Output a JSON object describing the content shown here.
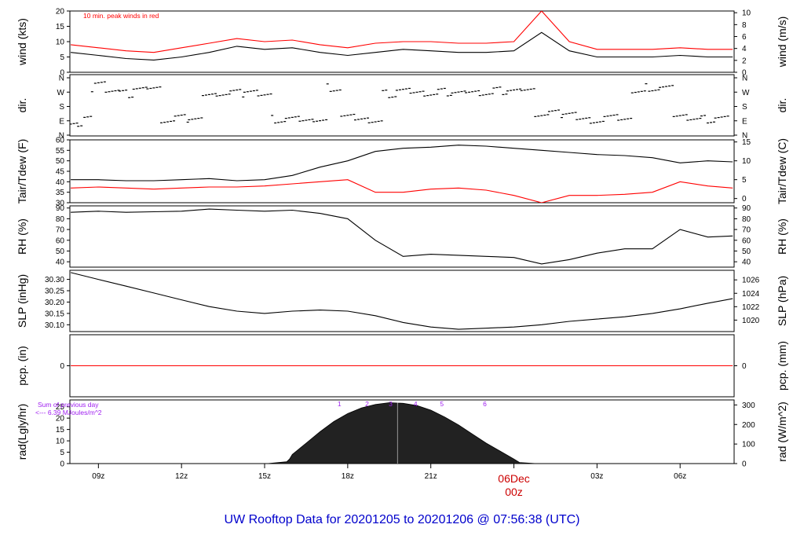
{
  "title": "UW Rooftop Data for 20201205  to  20201206 @ 07:56:38  (UTC)",
  "colors": {
    "title": "#0000cc",
    "accent_red": "#ff0000",
    "purple": "#a020f0",
    "line": "#000000"
  },
  "time_axis": {
    "ticks": [
      "09z",
      "12z",
      "15z",
      "18z",
      "21z",
      "00z",
      "03z",
      "06z"
    ],
    "tick_hours": [
      9,
      12,
      15,
      18,
      21,
      24,
      27,
      30
    ],
    "date_label": "06Dec",
    "date_tick": "00z",
    "range_hours": [
      7.97,
      31.95
    ]
  },
  "chart_data": [
    {
      "type": "line",
      "id": "wind",
      "ylabel_left": "wind (kts)",
      "ylabel_right": "wind (m/s)",
      "annotation": "10 min. peak winds in red",
      "ylim": [
        0,
        20
      ],
      "yticks_left": [
        "0",
        "5",
        "10",
        "15",
        "20"
      ],
      "yticks_right": [
        "0",
        "2",
        "4",
        "6",
        "8",
        "10"
      ],
      "series": [
        {
          "role": "wind speed",
          "color": "#000000",
          "x_hours": [
            8,
            9,
            10,
            11,
            12,
            13,
            14,
            15,
            16,
            17,
            18,
            19,
            20,
            21,
            22,
            23,
            24,
            25,
            26,
            27,
            28,
            29,
            30,
            31,
            31.9
          ],
          "values": [
            6.5,
            5.5,
            4.5,
            4,
            5,
            6.5,
            8.5,
            7.5,
            8,
            6.5,
            5.5,
            6.5,
            7.5,
            7,
            6.5,
            6.5,
            7,
            13,
            7,
            5,
            5,
            5,
            5.5,
            5,
            5
          ]
        },
        {
          "role": "10 min peak",
          "color": "#ff0000",
          "x_hours": [
            8,
            9,
            10,
            11,
            12,
            13,
            14,
            15,
            16,
            17,
            18,
            19,
            20,
            21,
            22,
            23,
            24,
            25,
            26,
            27,
            28,
            29,
            30,
            31,
            31.9
          ],
          "values": [
            9,
            8,
            7,
            6.5,
            8,
            9.5,
            11,
            10,
            10.5,
            9,
            8,
            9.5,
            10,
            10,
            9.5,
            9.5,
            10,
            20,
            10,
            7.5,
            7.5,
            7.5,
            8,
            7.5,
            7.5
          ]
        }
      ]
    },
    {
      "type": "scatter",
      "id": "dir",
      "ylabel_left": "dir.",
      "ylabel_right": "dir.",
      "yticks_left": [
        "N",
        "E",
        "S",
        "W",
        "N"
      ],
      "yticks_right": [
        "N",
        "E",
        "S",
        "W",
        "N"
      ],
      "series": [
        {
          "role": "wind direction (deg)",
          "color": "#000000",
          "x_hours": [
            8,
            8.5,
            9,
            9.5,
            10,
            10.5,
            11,
            11.5,
            12,
            12.5,
            13,
            13.5,
            14,
            14.5,
            15,
            15.5,
            16,
            16.5,
            17,
            17.5,
            18,
            18.5,
            19,
            19.5,
            20,
            20.5,
            21,
            21.5,
            22,
            22.5,
            23,
            23.5,
            24,
            24.5,
            25,
            25.5,
            26,
            26.5,
            27,
            27.5,
            28,
            28.5,
            29,
            29.5,
            30,
            30.5,
            31,
            31.5
          ],
          "values": [
            95,
            100,
            330,
            290,
            260,
            285,
            300,
            100,
            105,
            95,
            260,
            270,
            265,
            270,
            260,
            100,
            95,
            90,
            100,
            300,
            110,
            100,
            95,
            260,
            275,
            270,
            265,
            270,
            260,
            275,
            270,
            280,
            275,
            290,
            140,
            135,
            130,
            110,
            100,
            105,
            95,
            280,
            300,
            290,
            120,
            110,
            100,
            100
          ]
        }
      ]
    },
    {
      "type": "line",
      "id": "temp",
      "ylabel_left": "Tair/Tdew (F)",
      "ylabel_right": "Tair/Tdew (C)",
      "ylim": [
        30,
        60
      ],
      "yticks_left": [
        "30",
        "35",
        "40",
        "45",
        "50",
        "55",
        "60"
      ],
      "yticks_right": [
        "0",
        "5",
        "10",
        "15"
      ],
      "series": [
        {
          "role": "air temperature",
          "color": "#000000",
          "x_hours": [
            8,
            9,
            10,
            11,
            12,
            13,
            14,
            15,
            16,
            17,
            18,
            19,
            20,
            21,
            22,
            23,
            24,
            25,
            26,
            27,
            28,
            29,
            30,
            31,
            31.9
          ],
          "values": [
            41,
            41,
            40.5,
            40.5,
            41,
            41.5,
            40.5,
            41,
            43,
            47,
            50,
            54.5,
            56,
            56.5,
            57.5,
            57,
            56,
            55,
            54,
            53,
            52.5,
            51.5,
            49,
            50,
            49.5
          ]
        },
        {
          "role": "dew point",
          "color": "#ff0000",
          "x_hours": [
            8,
            9,
            10,
            11,
            12,
            13,
            14,
            15,
            16,
            17,
            18,
            19,
            20,
            21,
            22,
            23,
            24,
            25,
            26,
            27,
            28,
            29,
            30,
            31,
            31.9
          ],
          "values": [
            37,
            37.5,
            37,
            36.5,
            37,
            37.5,
            37.5,
            38,
            39,
            40,
            41,
            35,
            35,
            36.5,
            37,
            36,
            33.5,
            30,
            33.5,
            33.5,
            34,
            35,
            40,
            38,
            37
          ]
        }
      ]
    },
    {
      "type": "line",
      "id": "rh",
      "ylabel_left": "RH (%)",
      "ylabel_right": "RH (%)",
      "ylim": [
        35,
        92
      ],
      "yticks_left": [
        "40",
        "50",
        "60",
        "70",
        "80",
        "90"
      ],
      "yticks_right": [
        "40",
        "50",
        "60",
        "70",
        "80",
        "90"
      ],
      "series": [
        {
          "role": "relative humidity",
          "color": "#000000",
          "x_hours": [
            8,
            9,
            10,
            11,
            12,
            13,
            14,
            15,
            16,
            17,
            18,
            19,
            20,
            21,
            22,
            23,
            24,
            25,
            26,
            27,
            28,
            29,
            30,
            31,
            31.9
          ],
          "values": [
            86,
            87,
            86,
            86.5,
            87,
            89,
            88,
            87,
            88,
            85,
            80,
            60,
            45,
            47,
            46,
            45,
            44,
            38,
            42,
            48,
            52,
            52,
            70,
            63,
            64
          ]
        }
      ]
    },
    {
      "type": "line",
      "id": "slp",
      "ylabel_left": "SLP (inHg)",
      "ylabel_right": "SLP (hPa)",
      "ylim": [
        30.07,
        30.34
      ],
      "yticks_left": [
        "30.10",
        "30.15",
        "30.20",
        "30.25",
        "30.30"
      ],
      "yticks_right": [
        "1020",
        "1022",
        "1024",
        "1026"
      ],
      "series": [
        {
          "role": "sea level pressure",
          "color": "#000000",
          "x_hours": [
            8,
            9,
            10,
            11,
            12,
            13,
            14,
            15,
            16,
            17,
            18,
            19,
            20,
            21,
            22,
            23,
            24,
            25,
            26,
            27,
            28,
            29,
            30,
            31,
            31.9
          ],
          "values": [
            30.33,
            30.3,
            30.27,
            30.24,
            30.21,
            30.18,
            30.16,
            30.15,
            30.16,
            30.165,
            30.16,
            30.14,
            30.11,
            30.09,
            30.08,
            30.085,
            30.09,
            30.1,
            30.115,
            30.125,
            30.135,
            30.15,
            30.17,
            30.195,
            30.215
          ]
        }
      ]
    },
    {
      "type": "line",
      "id": "pcp",
      "ylabel_left": "pcp. (in)",
      "ylabel_right": "pcp. (mm)",
      "ylim": [
        -1,
        1
      ],
      "yticks_left": [
        "0"
      ],
      "yticks_right": [
        "0"
      ],
      "series": [
        {
          "role": "precipitation",
          "color": "#ff0000",
          "x_hours": [
            8,
            31.9
          ],
          "values": [
            0,
            0
          ]
        }
      ]
    },
    {
      "type": "area",
      "id": "rad",
      "ylabel_left": "rad(Lgly/hr)",
      "ylabel_right": "rad (W/m^2)",
      "annotation_line1": "Sum of previous day",
      "annotation_line2": "<--- 6.39 MJoules/m^2",
      "ylim": [
        0,
        28
      ],
      "yticks_left": [
        "0",
        "5",
        "10",
        "15",
        "20",
        "25"
      ],
      "yticks_right": [
        "0",
        "100",
        "200",
        "300"
      ],
      "sun_marks": [
        "1",
        "2",
        "3",
        "4",
        "5",
        "6"
      ],
      "sun_mark_hours": [
        17.7,
        18.7,
        19.55,
        20.45,
        21.4,
        22.95
      ],
      "series": [
        {
          "role": "solar radiation",
          "color": "#222222",
          "x_hours": [
            15.1,
            15.8,
            15.9,
            16,
            16.5,
            17,
            17.5,
            18,
            18.5,
            19,
            19.5,
            20,
            20.5,
            21,
            21.5,
            22,
            22.5,
            23,
            23.5,
            24,
            24.2,
            24.8
          ],
          "values": [
            0,
            0.8,
            2,
            4,
            9,
            14,
            18.5,
            22,
            24.5,
            26,
            26.8,
            26.5,
            25.5,
            23.5,
            20.5,
            17,
            13,
            9,
            5.5,
            2,
            0.5,
            0
          ]
        }
      ]
    }
  ]
}
